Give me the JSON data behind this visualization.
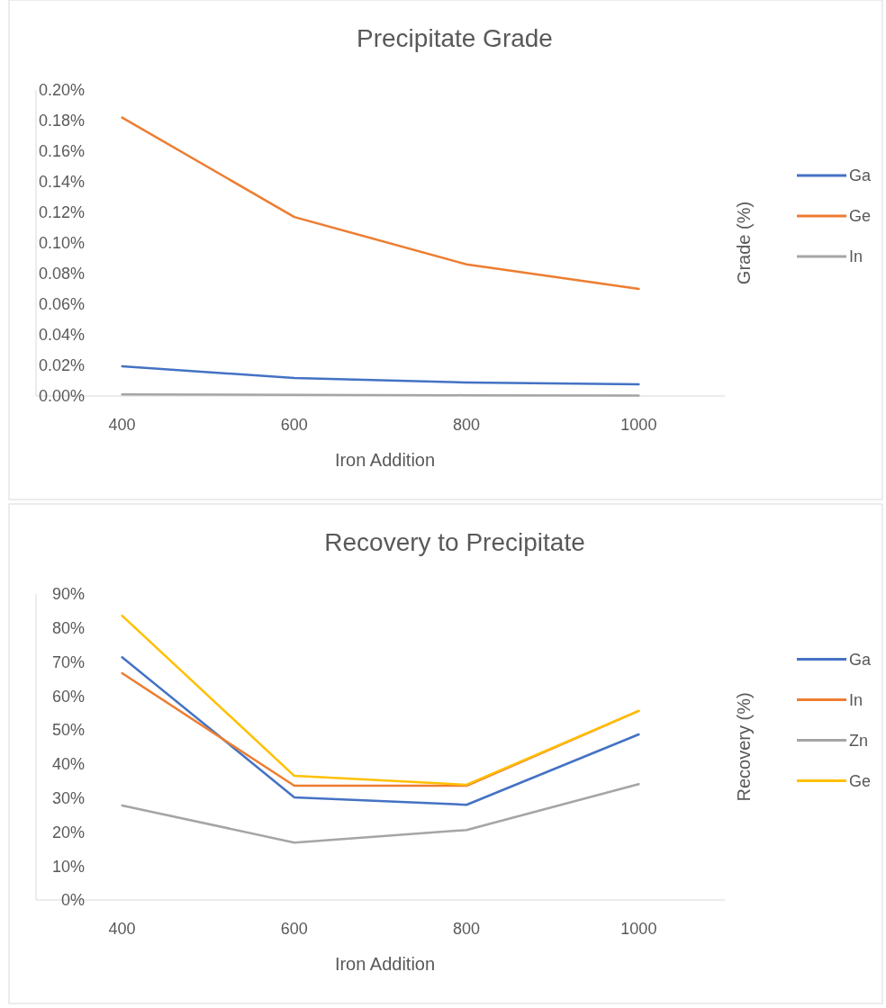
{
  "chart_data": [
    {
      "type": "line",
      "title": "Precipitate Grade",
      "xlabel": "Iron Addition",
      "ylabel": "Grade (%)",
      "x": [
        400,
        600,
        800,
        1000
      ],
      "xlim": [
        300,
        1100
      ],
      "xticks": [
        400,
        600,
        800,
        1000
      ],
      "ylim": [
        0,
        0.2
      ],
      "yticks": [
        {
          "value": 0,
          "label": "0.00%"
        },
        {
          "value": 0.02,
          "label": "0.02%"
        },
        {
          "value": 0.04,
          "label": "0.04%"
        },
        {
          "value": 0.06,
          "label": "0.06%"
        },
        {
          "value": 0.08,
          "label": "0.08%"
        },
        {
          "value": 0.1,
          "label": "0.10%"
        },
        {
          "value": 0.12,
          "label": "0.12%"
        },
        {
          "value": 0.14,
          "label": "0.14%"
        },
        {
          "value": 0.16,
          "label": "0.16%"
        },
        {
          "value": 0.18,
          "label": "0.18%"
        },
        {
          "value": 0.2,
          "label": "0.20%"
        }
      ],
      "grid": false,
      "legend": "right",
      "marker": "none",
      "series": [
        {
          "name": "Ga",
          "color": "#4472c4",
          "values": [
            0.0194,
            0.0118,
            0.0088,
            0.0076
          ]
        },
        {
          "name": "Ge",
          "color": "#ed7d31",
          "values": [
            0.182,
            0.117,
            0.086,
            0.07
          ]
        },
        {
          "name": "In",
          "color": "#a5a5a5",
          "values": [
            0.001,
            0.0008,
            0.0005,
            0.0003
          ]
        }
      ]
    },
    {
      "type": "line",
      "title": "Recovery to Precipitate",
      "xlabel": "Iron Addition",
      "ylabel": "Recovery (%)",
      "x": [
        400,
        600,
        800,
        1000
      ],
      "xlim": [
        300,
        1100
      ],
      "xticks": [
        400,
        600,
        800,
        1000
      ],
      "ylim": [
        0,
        90
      ],
      "yticks": [
        {
          "value": 0,
          "label": "0%"
        },
        {
          "value": 10,
          "label": "10%"
        },
        {
          "value": 20,
          "label": "20%"
        },
        {
          "value": 30,
          "label": "30%"
        },
        {
          "value": 40,
          "label": "40%"
        },
        {
          "value": 50,
          "label": "50%"
        },
        {
          "value": 60,
          "label": "60%"
        },
        {
          "value": 70,
          "label": "70%"
        },
        {
          "value": 80,
          "label": "80%"
        },
        {
          "value": 90,
          "label": "90%"
        }
      ],
      "grid": false,
      "legend": "right",
      "marker": "none",
      "series": [
        {
          "name": "Ga",
          "color": "#4472c4",
          "values": [
            71.4,
            30.2,
            28,
            48.7
          ]
        },
        {
          "name": "In",
          "color": "#ed7d31",
          "values": [
            66.7,
            33.6,
            33.6,
            55.6
          ]
        },
        {
          "name": "Zn",
          "color": "#a5a5a5",
          "values": [
            27.8,
            16.9,
            20.6,
            34.1
          ]
        },
        {
          "name": "Ge",
          "color": "#ffc000",
          "values": [
            83.6,
            36.5,
            33.9,
            55.6
          ]
        }
      ]
    }
  ]
}
